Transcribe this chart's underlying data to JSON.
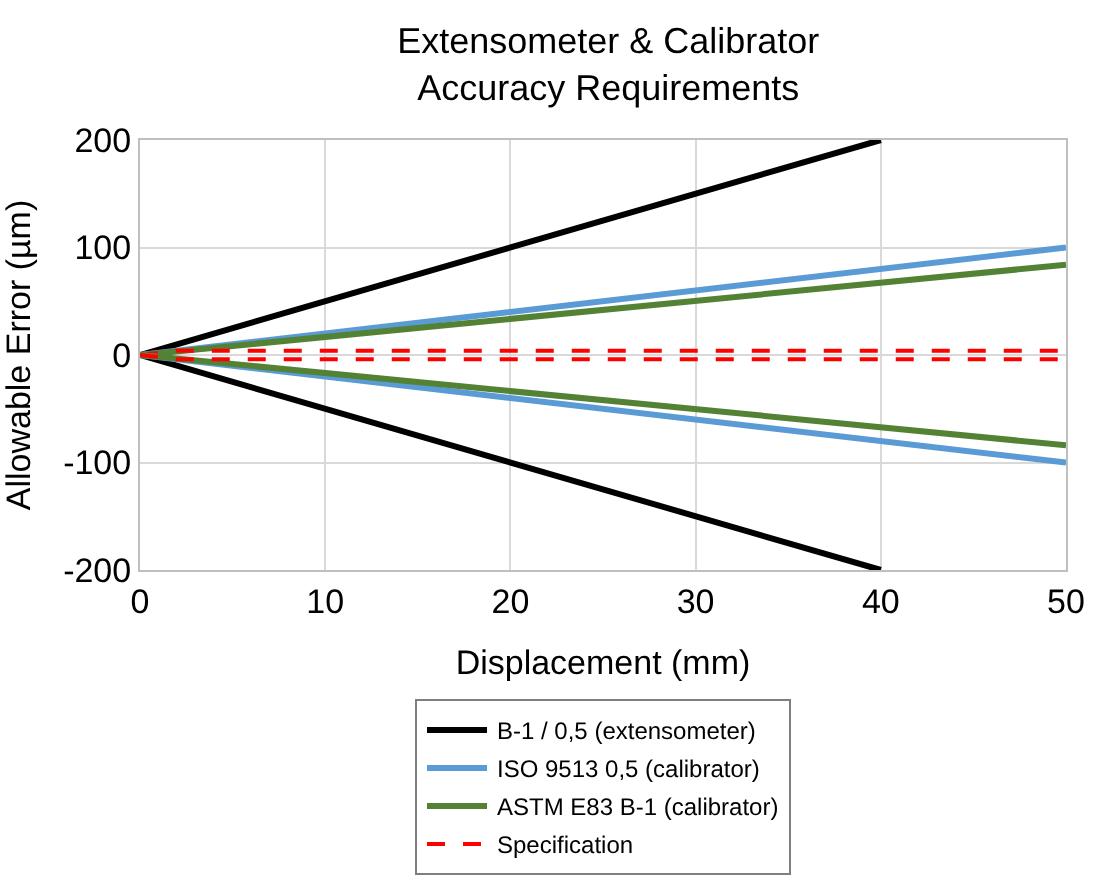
{
  "chart_data": {
    "type": "line",
    "title": "Extensometer & Calibrator\nAccuracy Requirements",
    "xlabel": "Displacement (mm)",
    "ylabel": "Allowable Error (µm)",
    "xlim": [
      0,
      50
    ],
    "ylim": [
      -200,
      200
    ],
    "xticks": [
      0,
      10,
      20,
      30,
      40,
      50
    ],
    "yticks": [
      -200,
      -100,
      0,
      100,
      200
    ],
    "grid": true,
    "legend": "bottom",
    "marker": "none",
    "series": [
      {
        "name": "B-1 / 0,5 (extensometer)",
        "color": "#000000",
        "x": [
          0,
          40
        ],
        "values": [
          0,
          200
        ]
      },
      {
        "name": "ISO 9513 0,5 (calibrator)",
        "color": "#5b9bd5",
        "x": [
          0,
          50
        ],
        "values": [
          0,
          100
        ]
      },
      {
        "name": "ASTM E83 B-1 (calibrator)",
        "color": "#548235",
        "x": [
          0,
          50
        ],
        "values": [
          0,
          84
        ]
      },
      {
        "name": "Specification",
        "color": "#ff0000",
        "line_style": "dashed",
        "x": [
          0,
          2,
          50
        ],
        "values": [
          0,
          4,
          4
        ]
      },
      {
        "color": "#000000",
        "x": [
          0,
          40
        ],
        "values": [
          0,
          -200
        ]
      },
      {
        "color": "#5b9bd5",
        "x": [
          0,
          50
        ],
        "values": [
          0,
          -100
        ]
      },
      {
        "color": "#548235",
        "x": [
          0,
          50
        ],
        "values": [
          0,
          -84
        ]
      },
      {
        "color": "#ff0000",
        "line_style": "dashed",
        "x": [
          0,
          2,
          50
        ],
        "values": [
          0,
          -4,
          -4
        ]
      }
    ]
  }
}
